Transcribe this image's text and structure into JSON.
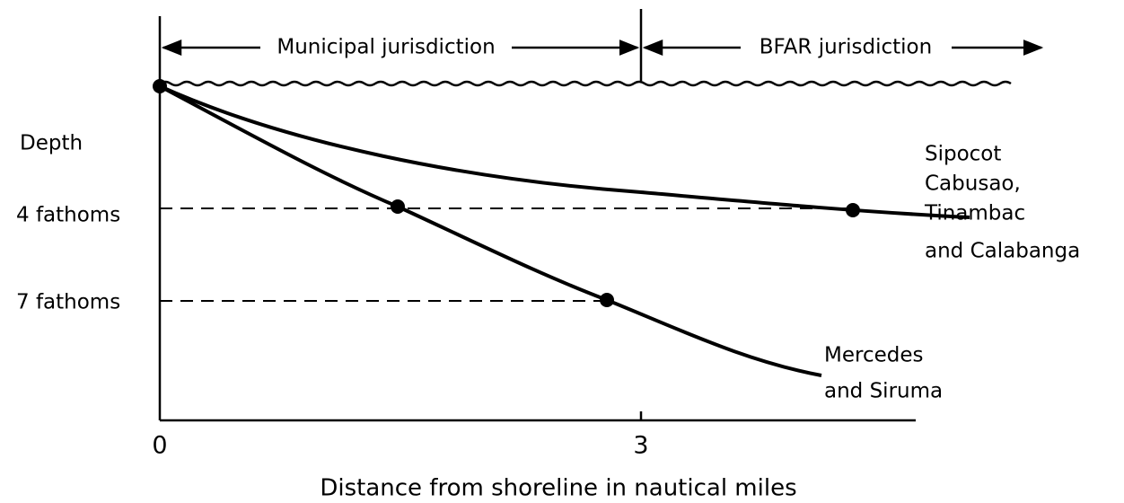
{
  "header": {
    "left_zone": "Municipal jurisdiction",
    "right_zone": "BFAR jurisdiction"
  },
  "axes": {
    "y_title": "Depth",
    "x_title": "Distance from shoreline in nautical miles",
    "y_labels": [
      "4 fathoms",
      "7 fathoms"
    ],
    "x_labels": [
      "0",
      "3"
    ]
  },
  "curves": [
    {
      "label_lines": [
        "Sipocot",
        "Cabusao,",
        "Tinambac",
        "and Calabanga"
      ]
    },
    {
      "label_lines": [
        "Mercedes",
        "and Siruma"
      ]
    }
  ]
}
